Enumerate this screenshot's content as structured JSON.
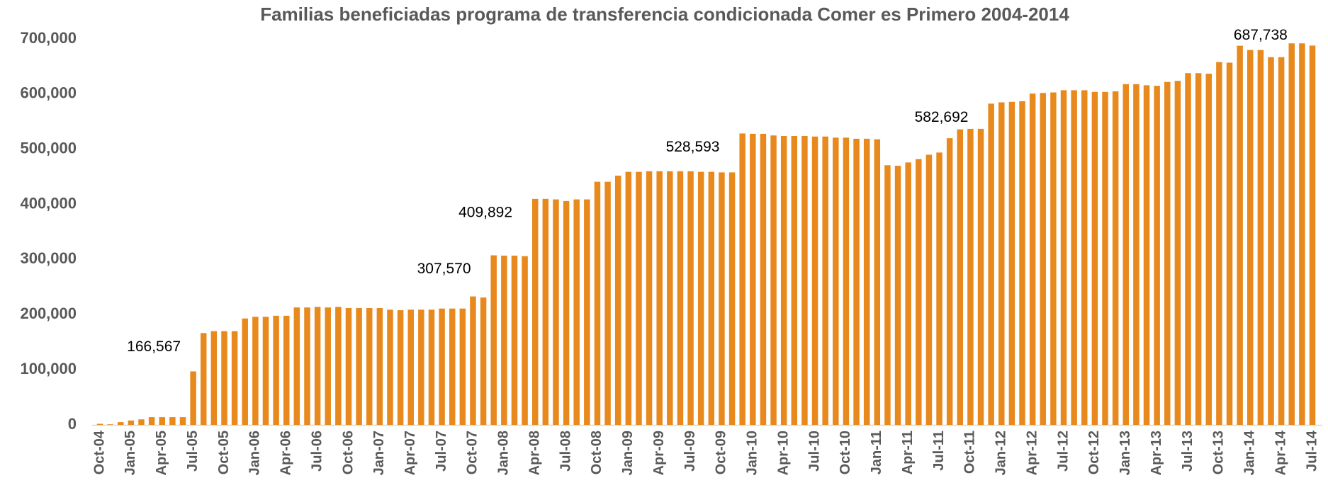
{
  "chart_data": {
    "type": "bar",
    "title": "Familias beneficiadas programa de transferencia condicionada Comer es Primero 2004-2014",
    "color": "#e8891e",
    "categories": [
      "Oct-04",
      null,
      null,
      "Jan-05",
      null,
      null,
      "Apr-05",
      null,
      null,
      "Jul-05",
      null,
      null,
      "Oct-05",
      null,
      null,
      "Jan-06",
      null,
      null,
      "Apr-06",
      null,
      null,
      "Jul-06",
      null,
      null,
      "Oct-06",
      null,
      null,
      "Jan-07",
      null,
      null,
      "Apr-07",
      null,
      null,
      "Jul-07",
      null,
      null,
      "Oct-07",
      null,
      null,
      "Jan-08",
      null,
      null,
      "Apr-08",
      null,
      null,
      "Jul-08",
      null,
      null,
      "Oct-08",
      null,
      null,
      "Jan-09",
      null,
      null,
      "Apr-09",
      null,
      null,
      "Jul-09",
      null,
      null,
      "Oct-09",
      null,
      null,
      "Jan-10",
      null,
      null,
      "Apr-10",
      null,
      null,
      "Jul-10",
      null,
      null,
      "Oct-10",
      null,
      null,
      "Jan-11",
      null,
      null,
      "Apr-11",
      null,
      null,
      "Jul-11",
      null,
      null,
      "Oct-11",
      null,
      null,
      "Jan-12",
      null,
      null,
      "Apr-12",
      null,
      null,
      "Jul-12",
      null,
      null,
      "Oct-12",
      null,
      null,
      "Jan-13",
      null,
      null,
      "Apr-13",
      null,
      null,
      "Jul-13",
      null,
      null,
      "Oct-13",
      null,
      null,
      "Jan-14",
      null,
      null,
      "Apr-14",
      null,
      null,
      "Jul-14"
    ],
    "values": [
      2000,
      1000,
      5000,
      8000,
      10000,
      14000,
      14000,
      14000,
      14000,
      97000,
      166567,
      170000,
      170000,
      170000,
      193000,
      196000,
      196000,
      198000,
      198000,
      213000,
      213000,
      214000,
      213000,
      214000,
      212000,
      212000,
      212000,
      212000,
      209000,
      208000,
      209000,
      209000,
      209000,
      211000,
      211000,
      211000,
      233000,
      231000,
      307570,
      307000,
      307000,
      306000,
      409892,
      410000,
      409000,
      406000,
      409000,
      409000,
      441000,
      441000,
      452000,
      459000,
      459000,
      460000,
      460000,
      460000,
      460000,
      460000,
      459000,
      459000,
      458000,
      458000,
      528593,
      528000,
      528000,
      525000,
      524000,
      524000,
      524000,
      523000,
      523000,
      521000,
      521000,
      519000,
      519000,
      518000,
      471000,
      470000,
      476000,
      482000,
      490000,
      494000,
      520000,
      536000,
      537000,
      537000,
      582692,
      585000,
      586000,
      587000,
      601000,
      602000,
      603000,
      607000,
      607000,
      607000,
      604000,
      604000,
      605000,
      618000,
      618000,
      616000,
      615000,
      622000,
      624000,
      638000,
      638000,
      637000,
      658000,
      657000,
      687738,
      680000,
      680000,
      667000,
      667000,
      692000,
      692000,
      688000
    ],
    "value_labels": [
      null,
      null,
      null,
      null,
      null,
      null,
      null,
      null,
      null,
      null,
      "166,567",
      null,
      null,
      null,
      null,
      null,
      null,
      null,
      null,
      null,
      null,
      null,
      null,
      null,
      null,
      null,
      null,
      null,
      null,
      null,
      null,
      null,
      null,
      null,
      null,
      null,
      null,
      null,
      "307,570",
      null,
      null,
      null,
      "409,892",
      null,
      null,
      null,
      null,
      null,
      null,
      null,
      null,
      null,
      null,
      null,
      null,
      null,
      null,
      null,
      null,
      null,
      null,
      null,
      "528,593",
      null,
      null,
      null,
      null,
      null,
      null,
      null,
      null,
      null,
      null,
      null,
      null,
      null,
      null,
      null,
      null,
      null,
      null,
      null,
      null,
      null,
      null,
      null,
      "582,692",
      null,
      null,
      null,
      null,
      null,
      null,
      null,
      null,
      null,
      null,
      null,
      null,
      null,
      null,
      null,
      null,
      null,
      null,
      null,
      null,
      null,
      null,
      null,
      "687,738",
      null,
      null,
      null,
      null,
      null,
      null,
      null
    ],
    "ylim": [
      0,
      700000
    ],
    "yticks": [
      0,
      {
        "value": 100000,
        "label": "100,000"
      },
      {
        "value": 200000,
        "label": "200,000"
      },
      {
        "value": 300000,
        "label": "300,000"
      },
      {
        "value": 400000,
        "label": "400,000"
      },
      {
        "value": 500000,
        "label": "500,000"
      },
      {
        "value": 600000,
        "label": "600,000"
      },
      {
        "value": 700000,
        "label": "700,000"
      }
    ],
    "grid": false
  }
}
